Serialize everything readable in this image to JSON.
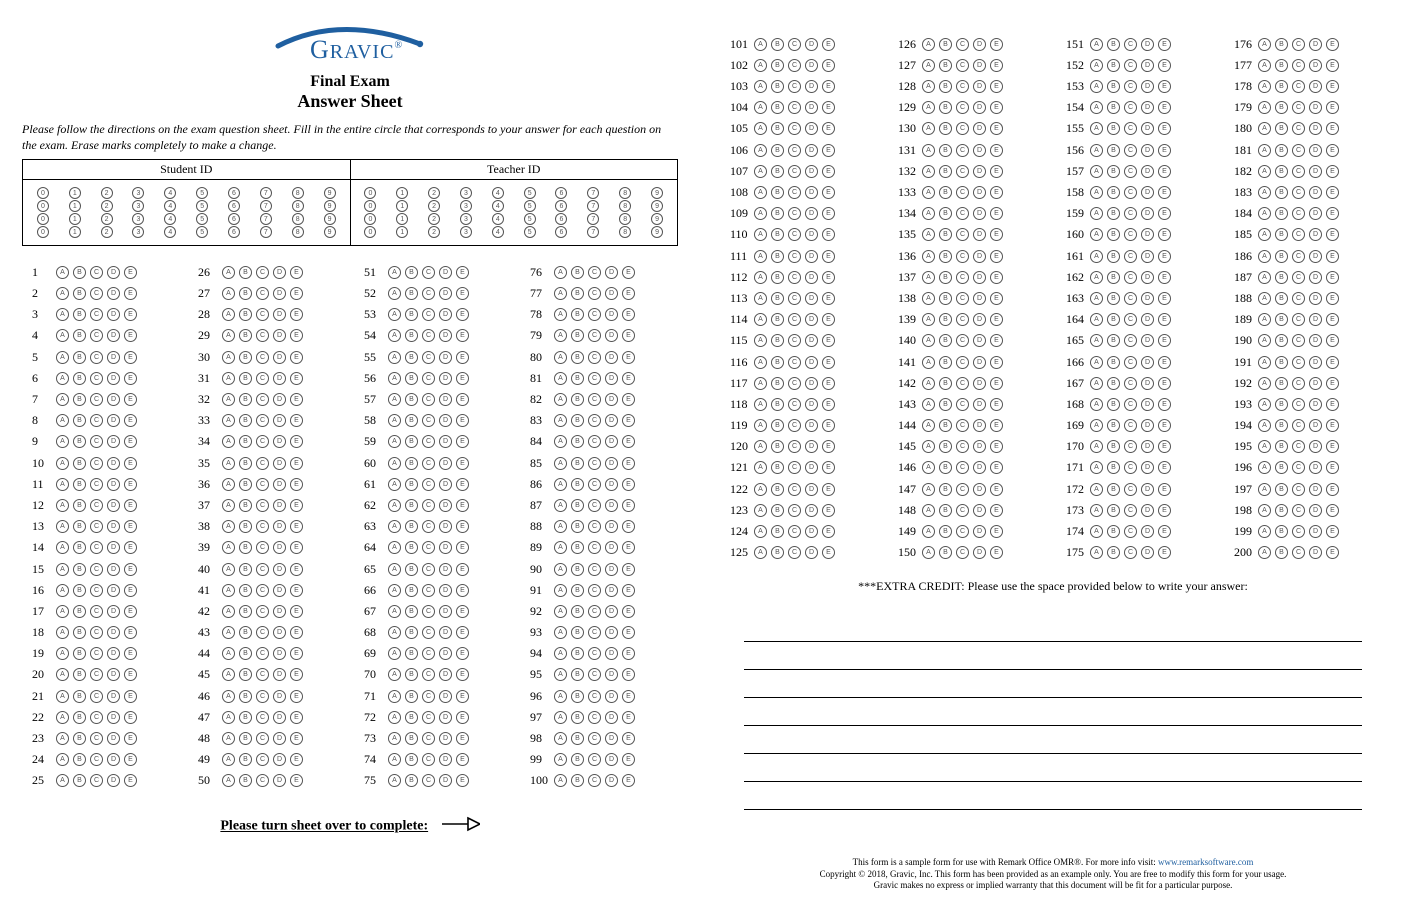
{
  "brand": {
    "name": "GRAVIC",
    "color": "#1f5fa0",
    "tagline_symbol": "®"
  },
  "title_line1": "Final Exam",
  "title_line2": "Answer Sheet",
  "instructions": "Please follow the directions on the exam question sheet. Fill in the entire circle that corresponds to your answer for each question on the exam. Erase marks completely to make a change.",
  "id_sections": {
    "student_label": "Student ID",
    "teacher_label": "Teacher ID",
    "digits": [
      "0",
      "1",
      "2",
      "3",
      "4",
      "5",
      "6",
      "7",
      "8",
      "9"
    ],
    "rows": 4,
    "columns": 10
  },
  "question_options": [
    "A",
    "B",
    "C",
    "D",
    "E"
  ],
  "page1": {
    "start": 1,
    "end": 100,
    "columns": 4,
    "per_column": 25
  },
  "page2": {
    "start": 101,
    "end": 200,
    "columns": 4,
    "per_column": 25
  },
  "turn_over_text": "Please turn sheet over to complete:",
  "extra_credit_text": "***EXTRA CREDIT: Please use the space provided below to write your answer:",
  "answer_line_count": 7,
  "footer": {
    "line1_prefix": "This form is a sample form for use with Remark Office OMR®. For more info visit: ",
    "line1_link_text": "www.remarksoftware.com",
    "line2": "Copyright © 2018, Gravic, Inc. This form has been provided as an example only. You are free to modify this form for your usage.",
    "line3": "Gravic makes no express or implied warranty that this document will be fit for a particular purpose."
  },
  "colors": {
    "bubble_border": "#666666",
    "text": "#000000",
    "background": "#ffffff",
    "divider": "#bdbdbd"
  }
}
